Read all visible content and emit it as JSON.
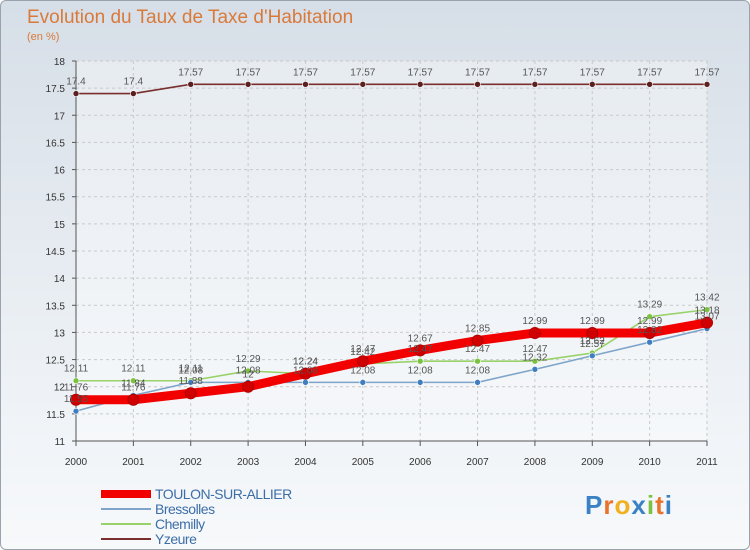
{
  "chart_data": {
    "type": "line",
    "title": "Evolution du Taux de Taxe d'Habitation",
    "subtitle": "(en %)",
    "xlabel": "",
    "ylabel": "",
    "x": [
      "2000",
      "2001",
      "2002",
      "2003",
      "2004",
      "2005",
      "2006",
      "2007",
      "2008",
      "2009",
      "2010",
      "2011"
    ],
    "ylim": [
      11,
      18
    ],
    "yticks": [
      "11",
      "11.5",
      "12",
      "12.5",
      "13",
      "13.5",
      "14",
      "14.5",
      "15",
      "15.5",
      "16",
      "16.5",
      "17",
      "17.5",
      "18"
    ],
    "grid": true,
    "legend_position": "bottom-left",
    "series": [
      {
        "name": "Yzeure",
        "color": "#7a2e2e",
        "values": [
          17.4,
          17.4,
          17.57,
          17.57,
          17.57,
          17.57,
          17.57,
          17.57,
          17.57,
          17.57,
          17.57,
          17.57
        ],
        "labels": [
          "17.4",
          "17.4",
          "17.57",
          "17.57",
          "17.57",
          "17.57",
          "17.57",
          "17.57",
          "17.57",
          "17.57",
          "17.57",
          "17.57"
        ]
      },
      {
        "name": "Chemilly",
        "color": "#99d26a",
        "values": [
          12.11,
          12.11,
          12.11,
          12.29,
          12.24,
          12.42,
          12.47,
          12.47,
          12.47,
          12.62,
          13.29,
          13.42
        ],
        "labels": [
          "12.11",
          "12.11",
          "12.11",
          "12.29",
          "12.24",
          "12.42",
          "12.47",
          "12.47",
          "12.47",
          "12.62",
          "13.29",
          "13.42"
        ]
      },
      {
        "name": "Bressolles",
        "color": "#7ea4c9",
        "values": [
          11.55,
          11.84,
          12.08,
          12.08,
          12.08,
          12.08,
          12.08,
          12.08,
          12.32,
          12.57,
          12.82,
          13.07
        ],
        "labels": [
          "11.55",
          "11.84",
          "12.08",
          "12.08",
          "12.08",
          "12.08",
          "12.08",
          "12.08",
          "12.32",
          "12.57",
          "12.82",
          "13.07"
        ]
      },
      {
        "name": "TOULON-SUR-ALLIER",
        "color": "#f20000",
        "values": [
          11.76,
          11.76,
          11.88,
          12.0,
          12.24,
          12.47,
          12.67,
          12.85,
          12.99,
          12.99,
          12.99,
          13.18
        ],
        "labels": [
          "11.76",
          "11.76",
          "11.88",
          "12",
          "12.24",
          "12.47",
          "12.67",
          "12.85",
          "12.99",
          "12.99",
          "12.99",
          "13.18"
        ]
      }
    ]
  },
  "legend": [
    {
      "name": "TOULON-SUR-ALLIER",
      "color": "#f20000"
    },
    {
      "name": "Bressolles",
      "color": "#7ea4c9"
    },
    {
      "name": "Chemilly",
      "color": "#99d26a"
    },
    {
      "name": "Yzeure",
      "color": "#7a2e2e"
    }
  ],
  "logo": {
    "text": "Proxiti"
  }
}
